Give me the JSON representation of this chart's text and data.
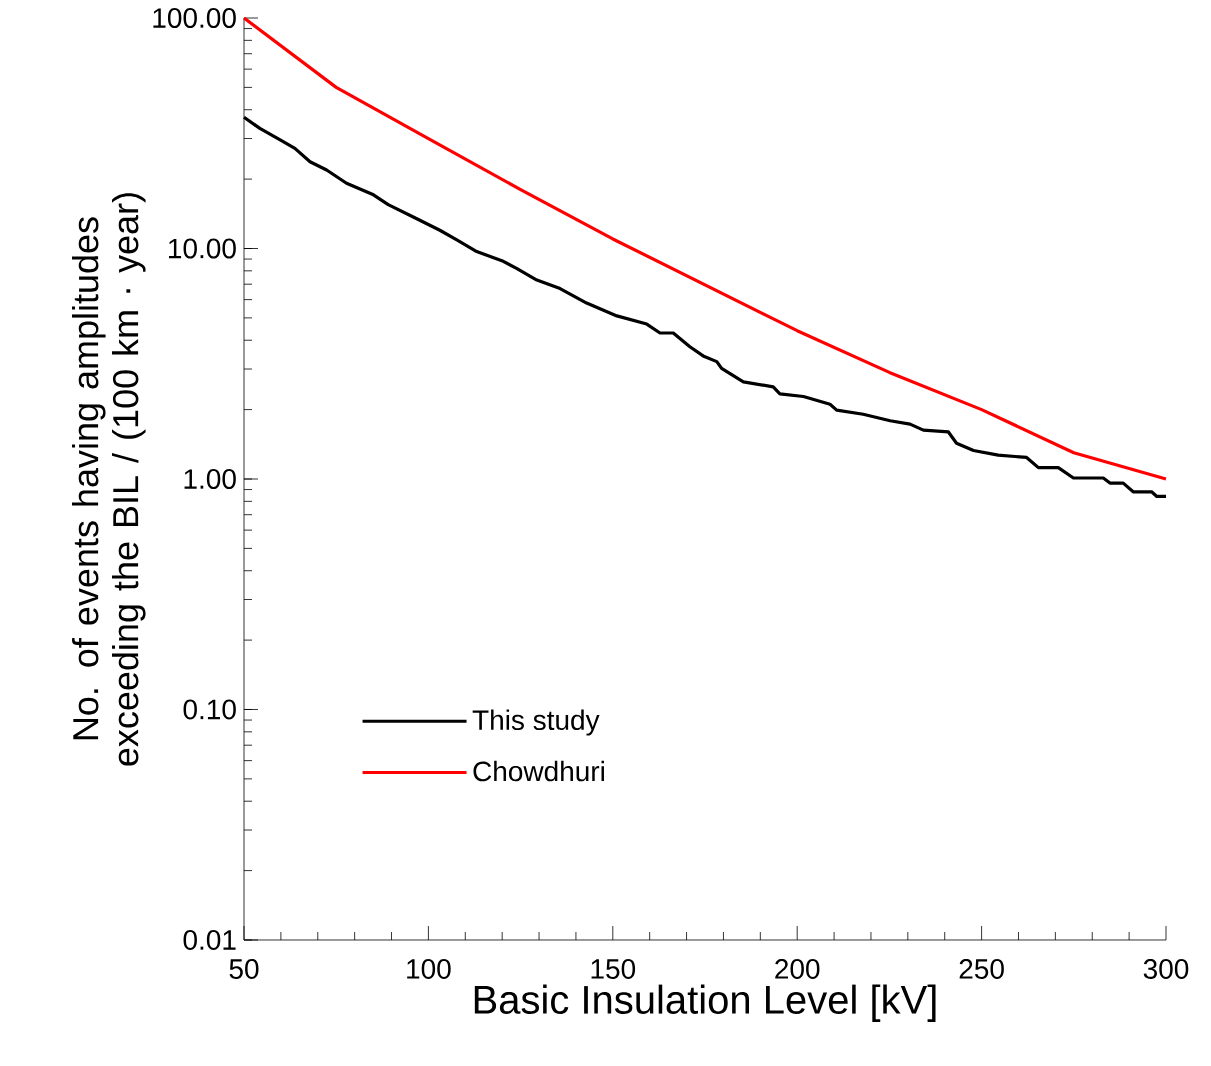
{
  "chart_data": {
    "type": "line",
    "xlabel": "Basic Insulation Level [kV]",
    "ylabel": "No. of events having amplitudes exceeding the BIL / (100 km · year)",
    "log": "y",
    "legend": "bottom left",
    "line_style": "solid",
    "xlim": [
      50,
      300
    ],
    "xticks": [
      50,
      100,
      150,
      200,
      250,
      300
    ],
    "ylim": [
      0.01,
      100
    ],
    "yticks": [
      {
        "value": 0.01,
        "label": "0.01"
      },
      {
        "value": 0.1,
        "label": "0.10"
      },
      {
        "value": 1,
        "label": "1.00"
      },
      {
        "value": 10,
        "label": "10.00"
      },
      {
        "value": 100,
        "label": "100.00"
      }
    ],
    "series": [
      {
        "name": "This study",
        "color": "#000000",
        "x": [
          50,
          54.3,
          59.8,
          63.8,
          67.9,
          72.4,
          77.8,
          85.1,
          89.1,
          95.9,
          103.1,
          107.7,
          113.1,
          120.3,
          123.9,
          129.4,
          135.7,
          142.9,
          151.1,
          159.2,
          162.8,
          166.4,
          170.9,
          174.5,
          178.2,
          179.5,
          185.4,
          193.5,
          195.3,
          201.7,
          208.9,
          210.7,
          217.9,
          225.2,
          230.6,
          234.2,
          241.0,
          243.2,
          247.8,
          254.5,
          262.2,
          265.4,
          270.8,
          274.9,
          283.0,
          284.8,
          288.4,
          291.1,
          296.1,
          297.5,
          300
        ],
        "values": [
          37.1,
          33.2,
          29.6,
          27.2,
          23.8,
          21.9,
          19.2,
          17.1,
          15.5,
          13.7,
          12.0,
          10.9,
          9.7,
          8.8,
          8.2,
          7.3,
          6.7,
          5.8,
          5.1,
          4.7,
          4.3,
          4.3,
          3.75,
          3.42,
          3.23,
          3.02,
          2.64,
          2.51,
          2.34,
          2.28,
          2.11,
          1.99,
          1.91,
          1.79,
          1.73,
          1.63,
          1.6,
          1.43,
          1.33,
          1.27,
          1.24,
          1.12,
          1.12,
          1.01,
          1.01,
          0.96,
          0.96,
          0.88,
          0.88,
          0.84,
          0.84
        ]
      },
      {
        "name": "Chowdhuri",
        "color": "#ff0000",
        "x": [
          50,
          75,
          100,
          125,
          150,
          200,
          225,
          250,
          275,
          300
        ],
        "values": [
          100,
          50,
          30,
          18,
          11,
          4.4,
          2.9,
          2.0,
          1.3,
          1.0
        ]
      }
    ]
  }
}
